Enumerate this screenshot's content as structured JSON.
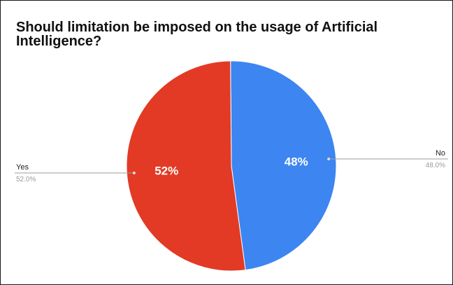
{
  "chart_data": {
    "type": "pie",
    "title": "Should limitation be imposed on the usage of Artificial Intelligence?",
    "slices": [
      {
        "label": "No",
        "value": 48.0,
        "slice_label": "48%",
        "legend_value": "48.0%",
        "color": "#3d85f0"
      },
      {
        "label": "Yes",
        "value": 52.0,
        "slice_label": "52%",
        "legend_value": "52.0%",
        "color": "#e23a25"
      }
    ],
    "start_angle": "top",
    "direction": "clockwise",
    "legend": "labels outside with leader lines"
  }
}
